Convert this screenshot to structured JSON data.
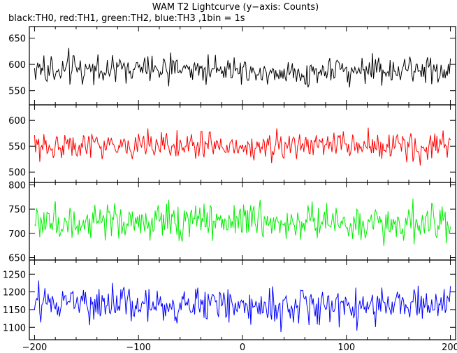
{
  "title": "WAM T2 Lightcurve (y−axis: Counts)",
  "subtitle": "black:TH0, red:TH1, green:TH2, blue:TH3 ,1bin = 1s",
  "chart_data": [
    {
      "type": "line",
      "series": [
        {
          "name": "TH0",
          "color": "#000000",
          "mean": 590,
          "spread": 35
        }
      ],
      "x_range": [
        -200,
        200
      ],
      "ylim": [
        523,
        672
      ],
      "yticks": [
        "550",
        "600",
        "650"
      ],
      "ytick_values": [
        550,
        600,
        650
      ]
    },
    {
      "type": "line",
      "series": [
        {
          "name": "TH1",
          "color": "#ff0000",
          "mean": 550,
          "spread": 36
        }
      ],
      "x_range": [
        -200,
        200
      ],
      "ylim": [
        480,
        630
      ],
      "yticks": [
        "500",
        "550",
        "600"
      ],
      "ytick_values": [
        500,
        550,
        600
      ]
    },
    {
      "type": "line",
      "series": [
        {
          "name": "TH2",
          "color": "#00ee00",
          "mean": 722,
          "spread": 50
        }
      ],
      "x_range": [
        -200,
        200
      ],
      "ylim": [
        645,
        805
      ],
      "yticks": [
        "650",
        "700",
        "750",
        "800"
      ],
      "ytick_values": [
        650,
        700,
        750,
        800
      ]
    },
    {
      "type": "line",
      "series": [
        {
          "name": "TH3",
          "color": "#0000ff",
          "mean": 1160,
          "spread": 65
        }
      ],
      "x_range": [
        -200,
        200
      ],
      "ylim": [
        1065,
        1290
      ],
      "yticks": [
        "1100",
        "1150",
        "1200",
        "1250"
      ],
      "ytick_values": [
        1100,
        1150,
        1200,
        1250
      ],
      "xlim": [
        -205,
        205
      ],
      "xticks": [
        "−200",
        "−100",
        "0",
        "100",
        "200"
      ],
      "xtick_values": [
        -200,
        -100,
        0,
        100,
        200
      ]
    }
  ]
}
